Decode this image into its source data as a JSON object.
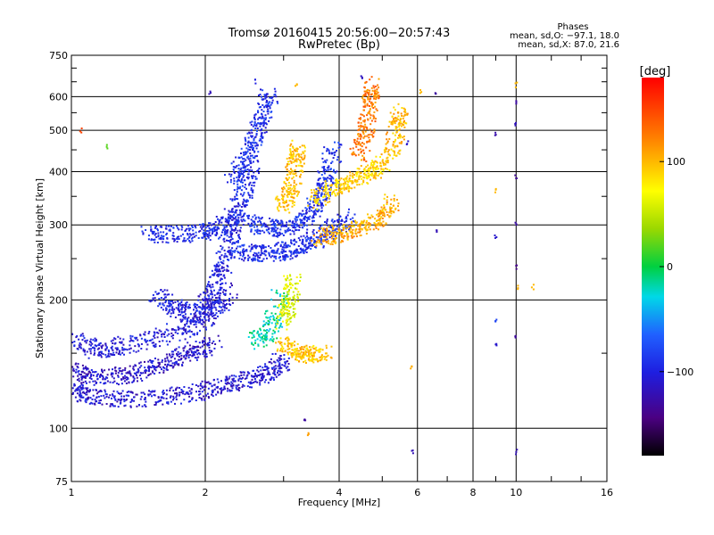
{
  "chart_data": {
    "type": "scatter",
    "title": "Tromsø 20160415 20:56:00−20:57:43",
    "subtitle": "RwPretec (Bp)",
    "xlabel": "Frequency [MHz]",
    "ylabel": "Stationary phase Virtual Height [km]",
    "x_scale": "log",
    "y_scale": "log",
    "xlim": [
      1,
      16
    ],
    "ylim": [
      75,
      750
    ],
    "x_ticks": [
      "1",
      "2",
      "4",
      "6",
      "8",
      "10",
      "16"
    ],
    "x_tick_values": [
      1,
      2,
      4,
      6,
      8,
      10,
      16
    ],
    "y_ticks": [
      "75",
      "100",
      "200",
      "300",
      "400",
      "500",
      "600",
      "750"
    ],
    "y_tick_values": [
      75,
      100,
      200,
      300,
      400,
      500,
      600,
      750
    ],
    "grid": true,
    "stats": {
      "heading": "Phases",
      "line_o": "mean, sd,O: −97.1, 18.0",
      "line_x": "mean, sd,X: 87.0, 21.6"
    },
    "colorbar": {
      "label": "[deg]",
      "range": [
        -180,
        180
      ],
      "ticks": [
        "100",
        "0",
        "−100"
      ],
      "tick_values": [
        100,
        0,
        -100
      ]
    },
    "traces": [
      {
        "points": [
          [
            1.0,
            122
          ],
          [
            1.1,
            119
          ],
          [
            1.3,
            117
          ],
          [
            1.6,
            118
          ],
          [
            1.9,
            121
          ],
          [
            2.2,
            126
          ],
          [
            2.5,
            130
          ],
          [
            2.8,
            136
          ],
          [
            3.0,
            145
          ]
        ],
        "phase": -108
      },
      {
        "points": [
          [
            1.0,
            137
          ],
          [
            1.1,
            130
          ],
          [
            1.3,
            133
          ],
          [
            1.5,
            138
          ],
          [
            1.7,
            145
          ],
          [
            1.9,
            152
          ],
          [
            2.1,
            158
          ]
        ],
        "phase": -112
      },
      {
        "points": [
          [
            1.0,
            162
          ],
          [
            1.15,
            152
          ],
          [
            1.3,
            156
          ],
          [
            1.6,
            164
          ],
          [
            1.9,
            175
          ],
          [
            2.1,
            190
          ],
          [
            2.3,
            210
          ]
        ],
        "phase": -104
      },
      {
        "points": [
          [
            1.55,
            205
          ],
          [
            1.7,
            192
          ],
          [
            1.9,
            185
          ],
          [
            2.05,
            200
          ],
          [
            2.15,
            228
          ],
          [
            2.25,
            260
          ],
          [
            2.35,
            300
          ]
        ],
        "phase": -100
      },
      {
        "points": [
          [
            1.45,
            285
          ],
          [
            1.7,
            285
          ],
          [
            2.0,
            288
          ],
          [
            2.2,
            298
          ],
          [
            2.35,
            320
          ],
          [
            2.45,
            360
          ],
          [
            2.55,
            420
          ]
        ],
        "phase": -95
      },
      {
        "points": [
          [
            2.35,
            262
          ],
          [
            2.6,
            257
          ],
          [
            2.9,
            258
          ],
          [
            3.2,
            264
          ],
          [
            3.5,
            275
          ],
          [
            3.8,
            290
          ],
          [
            4.2,
            312
          ]
        ],
        "phase": -92
      },
      {
        "points": [
          [
            2.5,
            305
          ],
          [
            2.8,
            293
          ],
          [
            3.1,
            298
          ],
          [
            3.4,
            312
          ],
          [
            3.6,
            345
          ],
          [
            3.75,
            385
          ],
          [
            3.9,
            460
          ]
        ],
        "phase": -90
      },
      {
        "points": [
          [
            2.3,
            380
          ],
          [
            2.5,
            430
          ],
          [
            2.6,
            480
          ],
          [
            2.7,
            540
          ],
          [
            2.8,
            610
          ]
        ],
        "phase": -92
      },
      {
        "points": [
          [
            2.6,
            160
          ],
          [
            2.8,
            170
          ],
          [
            2.95,
            205
          ]
        ],
        "phase": -20
      },
      {
        "points": [
          [
            3.0,
            158
          ],
          [
            3.2,
            152
          ],
          [
            3.45,
            148
          ],
          [
            3.7,
            150
          ]
        ],
        "phase": 95
      },
      {
        "points": [
          [
            3.0,
            178
          ],
          [
            3.1,
            195
          ],
          [
            3.15,
            230
          ]
        ],
        "phase": 60
      },
      {
        "points": [
          [
            3.0,
            330
          ],
          [
            3.1,
            360
          ],
          [
            3.2,
            420
          ],
          [
            3.25,
            455
          ]
        ],
        "phase": 98
      },
      {
        "points": [
          [
            3.6,
            280
          ],
          [
            4.0,
            286
          ],
          [
            4.5,
            296
          ],
          [
            5.0,
            312
          ],
          [
            5.3,
            340
          ]
        ],
        "phase": 105
      },
      {
        "points": [
          [
            3.5,
            340
          ],
          [
            3.9,
            365
          ],
          [
            4.3,
            380
          ],
          [
            4.7,
            400
          ],
          [
            5.0,
            420
          ]
        ],
        "phase": 90
      },
      {
        "points": [
          [
            4.4,
            430
          ],
          [
            4.6,
            500
          ],
          [
            4.7,
            580
          ],
          [
            4.7,
            640
          ]
        ],
        "phase": 125
      },
      {
        "points": [
          [
            5.2,
            430
          ],
          [
            5.4,
            500
          ],
          [
            5.5,
            560
          ]
        ],
        "phase": 100
      }
    ],
    "sparse_points": [
      {
        "x": 10.0,
        "y": 580,
        "phase": -130
      },
      {
        "x": 10.0,
        "y": 520,
        "phase": -118
      },
      {
        "x": 10.0,
        "y": 390,
        "phase": -135
      },
      {
        "x": 10.0,
        "y": 300,
        "phase": -128
      },
      {
        "x": 10.0,
        "y": 240,
        "phase": -140
      },
      {
        "x": 10.0,
        "y": 165,
        "phase": -132
      },
      {
        "x": 10.0,
        "y": 88,
        "phase": -120
      },
      {
        "x": 10.0,
        "y": 640,
        "phase": 100
      },
      {
        "x": 10.1,
        "y": 215,
        "phase": 105
      },
      {
        "x": 10.9,
        "y": 215,
        "phase": 100
      },
      {
        "x": 9.0,
        "y": 490,
        "phase": -125
      },
      {
        "x": 9.0,
        "y": 280,
        "phase": -110
      },
      {
        "x": 9.0,
        "y": 180,
        "phase": -80
      },
      {
        "x": 9.0,
        "y": 156,
        "phase": -110
      },
      {
        "x": 9.0,
        "y": 360,
        "phase": 100
      },
      {
        "x": 6.6,
        "y": 610,
        "phase": -130
      },
      {
        "x": 6.6,
        "y": 288,
        "phase": -120
      },
      {
        "x": 6.1,
        "y": 620,
        "phase": 100
      },
      {
        "x": 5.85,
        "y": 88,
        "phase": -120
      },
      {
        "x": 5.8,
        "y": 140,
        "phase": 105
      },
      {
        "x": 3.35,
        "y": 105,
        "phase": -130
      },
      {
        "x": 3.4,
        "y": 97,
        "phase": 110
      },
      {
        "x": 1.05,
        "y": 500,
        "phase": 150
      },
      {
        "x": 1.2,
        "y": 460,
        "phase": 20
      },
      {
        "x": 2.05,
        "y": 615,
        "phase": -120
      },
      {
        "x": 4.5,
        "y": 665,
        "phase": -115
      },
      {
        "x": 2.6,
        "y": 650,
        "phase": -100
      },
      {
        "x": 3.2,
        "y": 640,
        "phase": 100
      },
      {
        "x": 5.7,
        "y": 470,
        "phase": -110
      }
    ]
  }
}
